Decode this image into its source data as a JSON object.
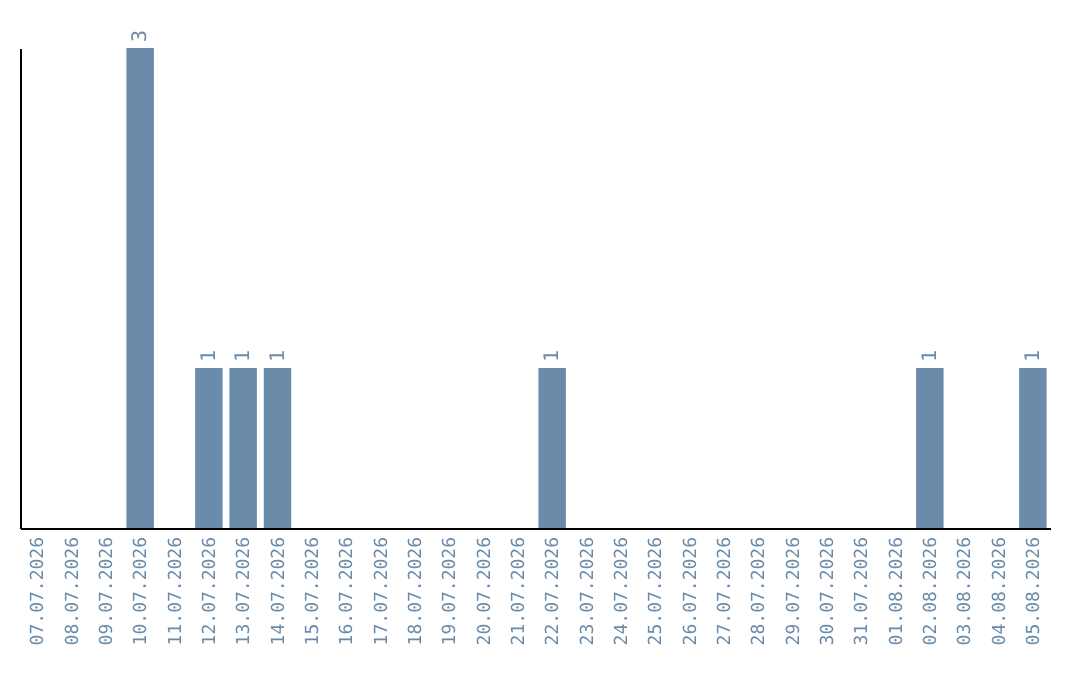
{
  "chart_data": {
    "type": "bar",
    "categories": [
      "07.07.2026",
      "08.07.2026",
      "09.07.2026",
      "10.07.2026",
      "11.07.2026",
      "12.07.2026",
      "13.07.2026",
      "14.07.2026",
      "15.07.2026",
      "16.07.2026",
      "17.07.2026",
      "18.07.2026",
      "19.07.2026",
      "20.07.2026",
      "21.07.2026",
      "22.07.2026",
      "23.07.2026",
      "24.07.2026",
      "25.07.2026",
      "26.07.2026",
      "27.07.2026",
      "28.07.2026",
      "29.07.2026",
      "30.07.2026",
      "31.07.2026",
      "01.08.2026",
      "02.08.2026",
      "03.08.2026",
      "04.08.2026",
      "05.08.2026"
    ],
    "values": [
      0,
      0,
      0,
      3,
      0,
      1,
      1,
      1,
      0,
      0,
      0,
      0,
      0,
      0,
      0,
      1,
      0,
      0,
      0,
      0,
      0,
      0,
      0,
      0,
      0,
      0,
      1,
      0,
      0,
      1
    ],
    "value_labels": [
      null,
      null,
      null,
      "3",
      null,
      "1",
      "1",
      "1",
      null,
      null,
      null,
      null,
      null,
      null,
      null,
      "1",
      null,
      null,
      null,
      null,
      null,
      null,
      null,
      null,
      null,
      null,
      "1",
      null,
      null,
      "1"
    ],
    "color": "#6a8caa",
    "tick_labels": "x",
    "grid": false
  }
}
